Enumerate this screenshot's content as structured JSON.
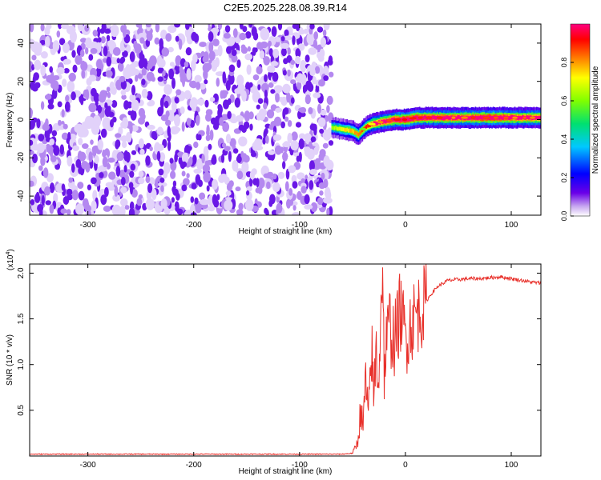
{
  "title": "C2E5.2025.228.08.39.R14",
  "chart_data": [
    {
      "type": "heatmap",
      "xlabel": "Height of straight line (km)",
      "ylabel": "Frequency (Hz)",
      "xlim": [
        -355,
        128
      ],
      "ylim": [
        -50,
        50
      ],
      "xticks": [
        -300,
        -200,
        -100,
        0,
        100
      ],
      "xtick_labels": [
        "-300",
        "-200",
        "-100",
        "0",
        "100"
      ],
      "yticks": [
        -40,
        -20,
        0,
        20,
        40
      ],
      "ytick_labels": [
        "-40",
        "-20",
        "0",
        "20",
        "40"
      ],
      "colorbar": {
        "label": "Normalized spectral amplitude",
        "range": [
          0,
          1
        ],
        "ticks": [
          0.0,
          0.2,
          0.4,
          0.6,
          0.8
        ],
        "tick_labels": [
          "0.0",
          "0.2",
          "0.4",
          "0.6",
          "0.8"
        ],
        "colors": [
          "#ffffff",
          "#c8a8f0",
          "#6a00e8",
          "#0000ff",
          "#00c8ff",
          "#00e070",
          "#80ff00",
          "#ffff00",
          "#ff8000",
          "#ff0000",
          "#ff0080"
        ]
      },
      "noise_region": {
        "x_range": [
          -355,
          -70
        ],
        "freq_range": [
          -50,
          50
        ],
        "amplitude_range": [
          0.0,
          0.15
        ]
      },
      "signal_track": {
        "x": [
          -70,
          -60,
          -50,
          -45,
          -40,
          -35,
          -30,
          -20,
          -10,
          0,
          10,
          20,
          40,
          60,
          80,
          100,
          128
        ],
        "freq": [
          -4,
          -5,
          -6,
          -8,
          -5,
          -3,
          -2,
          -1,
          0,
          0,
          1,
          1,
          1,
          1,
          1,
          1,
          1
        ],
        "amplitude": [
          0.3,
          0.4,
          0.45,
          0.5,
          0.55,
          0.6,
          0.7,
          0.75,
          0.8,
          0.85,
          0.85,
          0.8,
          0.8,
          0.8,
          0.85,
          0.8,
          0.75
        ]
      },
      "grid": false
    },
    {
      "type": "line",
      "xlabel": "Height of straight line (km)",
      "ylabel": "SNR (10 * v/v)",
      "multiplier_label": "(x10",
      "multiplier_exp": "4",
      "multiplier_close": ")",
      "xlim": [
        -355,
        128
      ],
      "ylim": [
        0,
        2.1
      ],
      "xticks": [
        -300,
        -200,
        -100,
        0,
        100
      ],
      "xtick_labels": [
        "-300",
        "-200",
        "-100",
        "0",
        "100"
      ],
      "yticks": [
        0.5,
        1.0,
        1.5,
        2.0
      ],
      "ytick_labels": [
        "0.5",
        "1.0",
        "1.5",
        "2.0"
      ],
      "series": [
        {
          "color": "#e8302a",
          "x": [
            -355,
            -300,
            -200,
            -100,
            -60,
            -50,
            -45,
            -42,
            -40,
            -38,
            -35,
            -32,
            -30,
            -28,
            -25,
            -22,
            -20,
            -15,
            -10,
            -5,
            0,
            5,
            10,
            15,
            20,
            25,
            30,
            40,
            50,
            60,
            70,
            80,
            90,
            100,
            110,
            120,
            128
          ],
          "y": [
            0.02,
            0.02,
            0.02,
            0.02,
            0.02,
            0.03,
            0.15,
            0.55,
            0.25,
            0.85,
            0.4,
            1.2,
            0.6,
            1.15,
            0.9,
            2.05,
            1.0,
            1.45,
            1.25,
            1.6,
            1.3,
            1.45,
            1.55,
            1.6,
            1.7,
            1.78,
            1.85,
            1.92,
            1.93,
            1.94,
            1.94,
            1.95,
            1.96,
            1.94,
            1.92,
            1.9,
            1.89
          ]
        }
      ],
      "grid": false
    }
  ]
}
